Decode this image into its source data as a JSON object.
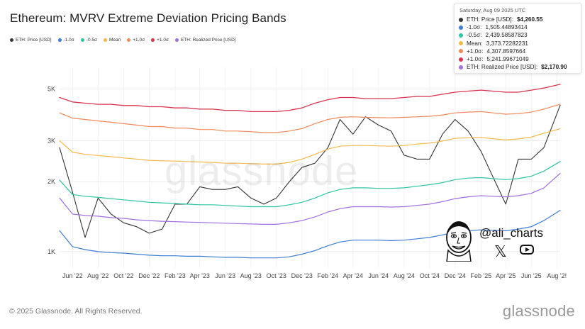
{
  "chart_data": {
    "type": "line",
    "title": "Ethereum: MVRV Extreme Deviation Pricing Bands",
    "y_scale": "log",
    "ylim": [
      850,
      6200
    ],
    "y_ticks": [
      {
        "value": 1000,
        "label": "1K"
      },
      {
        "value": 2000,
        "label": "2K"
      },
      {
        "value": 3000,
        "label": "3K"
      },
      {
        "value": 5000,
        "label": "5K"
      }
    ],
    "xlim": [
      "2022-05-01",
      "2025-08-09"
    ],
    "x_ticks": [
      {
        "date": "2022-06-01",
        "label": "Jun '22"
      },
      {
        "date": "2022-08-01",
        "label": "Aug '22"
      },
      {
        "date": "2022-10-01",
        "label": "Oct '22"
      },
      {
        "date": "2022-12-01",
        "label": "Dec '22"
      },
      {
        "date": "2023-02-01",
        "label": "Feb '23"
      },
      {
        "date": "2023-04-01",
        "label": "Apr '23"
      },
      {
        "date": "2023-06-01",
        "label": "Jun '23"
      },
      {
        "date": "2023-08-01",
        "label": "Aug '23"
      },
      {
        "date": "2023-10-01",
        "label": "Oct '23"
      },
      {
        "date": "2023-12-01",
        "label": "Dec '23"
      },
      {
        "date": "2024-02-01",
        "label": "Feb '24"
      },
      {
        "date": "2024-04-01",
        "label": "Apr '24"
      },
      {
        "date": "2024-06-01",
        "label": "Jun '24"
      },
      {
        "date": "2024-08-01",
        "label": "Aug '24"
      },
      {
        "date": "2024-10-01",
        "label": "Oct '24"
      },
      {
        "date": "2024-12-01",
        "label": "Dec '24"
      },
      {
        "date": "2025-02-01",
        "label": "Feb '25"
      },
      {
        "date": "2025-04-01",
        "label": "Apr '25"
      },
      {
        "date": "2025-06-01",
        "label": "Jun '25"
      },
      {
        "date": "2025-08-01",
        "label": "Aug '2!"
      }
    ],
    "grid": true,
    "legend_position": "top-left",
    "x": [
      "2022-05-01",
      "2022-06-01",
      "2022-07-01",
      "2022-08-01",
      "2022-09-01",
      "2022-10-01",
      "2022-11-01",
      "2022-12-01",
      "2023-01-01",
      "2023-02-01",
      "2023-03-01",
      "2023-04-01",
      "2023-05-01",
      "2023-06-01",
      "2023-07-01",
      "2023-08-01",
      "2023-09-01",
      "2023-10-01",
      "2023-11-01",
      "2023-12-01",
      "2024-01-01",
      "2024-02-01",
      "2024-03-01",
      "2024-04-01",
      "2024-05-01",
      "2024-06-01",
      "2024-07-01",
      "2024-08-01",
      "2024-09-01",
      "2024-10-01",
      "2024-11-01",
      "2024-12-01",
      "2025-01-01",
      "2025-02-01",
      "2025-03-01",
      "2025-04-01",
      "2025-05-01",
      "2025-06-01",
      "2025-07-01",
      "2025-08-09"
    ],
    "series": [
      {
        "name": "ETH: Price [USD]",
        "color": "#333333",
        "width": 1.1,
        "values": [
          2800,
          1800,
          1150,
          1700,
          1450,
          1330,
          1280,
          1200,
          1250,
          1600,
          1600,
          1900,
          1850,
          1850,
          1900,
          1700,
          1600,
          1700,
          2000,
          2300,
          2400,
          2800,
          3700,
          3200,
          3800,
          3500,
          3300,
          2600,
          2500,
          2500,
          3200,
          3700,
          3300,
          2700,
          2100,
          1600,
          2500,
          2500,
          2800,
          4260
        ]
      },
      {
        "name": "+1.0σ",
        "color": "#d9334f",
        "width": 1.3,
        "values": [
          4600,
          4400,
          4350,
          4300,
          4300,
          4250,
          4250,
          4200,
          4200,
          4150,
          4150,
          4100,
          4100,
          4050,
          4050,
          4000,
          4000,
          4000,
          4050,
          4150,
          4350,
          4500,
          4600,
          4600,
          4550,
          4550,
          4550,
          4600,
          4650,
          4650,
          4750,
          4850,
          4900,
          4950,
          4900,
          4850,
          4850,
          4950,
          5050,
          5242
        ]
      },
      {
        "name": "+1.0σ",
        "color": "#f08a5d",
        "width": 1.2,
        "values": [
          3950,
          3750,
          3700,
          3650,
          3600,
          3550,
          3500,
          3450,
          3450,
          3400,
          3400,
          3350,
          3350,
          3300,
          3300,
          3280,
          3250,
          3250,
          3300,
          3380,
          3550,
          3700,
          3780,
          3800,
          3780,
          3770,
          3760,
          3780,
          3800,
          3820,
          3870,
          3950,
          3980,
          4000,
          3950,
          3900,
          3920,
          3980,
          4100,
          4308
        ]
      },
      {
        "name": "Mean",
        "color": "#f5b94a",
        "width": 1.2,
        "values": [
          3000,
          2680,
          2620,
          2590,
          2560,
          2530,
          2500,
          2470,
          2460,
          2450,
          2440,
          2430,
          2420,
          2400,
          2400,
          2390,
          2380,
          2380,
          2420,
          2500,
          2620,
          2760,
          2840,
          2860,
          2860,
          2850,
          2840,
          2860,
          2900,
          2930,
          2990,
          3070,
          3090,
          3100,
          3060,
          3020,
          3050,
          3110,
          3230,
          3374
        ]
      },
      {
        "name": "-0.5σ",
        "color": "#2fc4a2",
        "width": 1.2,
        "values": [
          2030,
          1760,
          1730,
          1710,
          1690,
          1670,
          1650,
          1630,
          1620,
          1610,
          1600,
          1590,
          1590,
          1580,
          1570,
          1560,
          1560,
          1560,
          1590,
          1630,
          1700,
          1790,
          1850,
          1880,
          1880,
          1870,
          1870,
          1880,
          1910,
          1940,
          1980,
          2040,
          2070,
          2080,
          2060,
          2040,
          2060,
          2110,
          2220,
          2440
        ]
      },
      {
        "name": "ETH: Realized Price [USD]",
        "color": "#a070e0",
        "width": 1.2,
        "values": [
          1700,
          1450,
          1430,
          1420,
          1400,
          1390,
          1370,
          1360,
          1350,
          1345,
          1340,
          1335,
          1330,
          1325,
          1320,
          1315,
          1310,
          1310,
          1330,
          1360,
          1410,
          1480,
          1530,
          1560,
          1560,
          1560,
          1555,
          1560,
          1580,
          1600,
          1640,
          1690,
          1720,
          1740,
          1730,
          1720,
          1740,
          1780,
          1880,
          2171
        ]
      },
      {
        "name": "-1.0σ",
        "color": "#3d7cd6",
        "width": 1.2,
        "values": [
          1230,
          1050,
          1020,
          1000,
          990,
          985,
          975,
          965,
          960,
          960,
          955,
          955,
          950,
          945,
          945,
          940,
          940,
          940,
          950,
          975,
          1010,
          1060,
          1100,
          1120,
          1120,
          1120,
          1115,
          1120,
          1135,
          1150,
          1180,
          1210,
          1230,
          1240,
          1235,
          1230,
          1250,
          1280,
          1360,
          1505
        ]
      }
    ]
  },
  "legend": [
    {
      "label": "ETH: Price [USD]",
      "color": "#333333"
    },
    {
      "label": "-1.0σ",
      "color": "#3d7cd6"
    },
    {
      "label": "-0.5σ",
      "color": "#2fc4a2"
    },
    {
      "label": "Mean",
      "color": "#f5b94a"
    },
    {
      "label": "+1.0σ",
      "color": "#f08a5d"
    },
    {
      "label": "+1.0σ",
      "color": "#d9334f"
    },
    {
      "label": "ETH: Realized Price [USD]",
      "color": "#a070e0"
    }
  ],
  "tooltip": {
    "date": "Saturday, Aug 09 2025 UTC",
    "rows": [
      {
        "label": "ETH: Price [USD]:",
        "value": "$4,260.55",
        "color": "#333333",
        "bold": true
      },
      {
        "label": "-1.0σ:",
        "value": "1,505.44893414",
        "color": "#3d7cd6",
        "bold": false
      },
      {
        "label": "-0.5σ:",
        "value": "2,439.58587823",
        "color": "#2fc4a2",
        "bold": false
      },
      {
        "label": "Mean:",
        "value": "3,373.72282231",
        "color": "#f5b94a",
        "bold": false
      },
      {
        "label": "+1.0σ:",
        "value": "4,307.8597664",
        "color": "#f08a5d",
        "bold": false
      },
      {
        "label": "+1.0σ:",
        "value": "5,241.99671049",
        "color": "#d9334f",
        "bold": false
      },
      {
        "label": "ETH: Realized Price [USD]:",
        "value": "$2,170.90",
        "color": "#a070e0",
        "bold": true
      }
    ]
  },
  "watermark": "glassnode",
  "social": {
    "handle": "@ali_charts",
    "x_glyph": "𝕏"
  },
  "footer": {
    "copyright": "© 2025 Glassnode. All Rights Reserved.",
    "logo": "glassnode"
  }
}
